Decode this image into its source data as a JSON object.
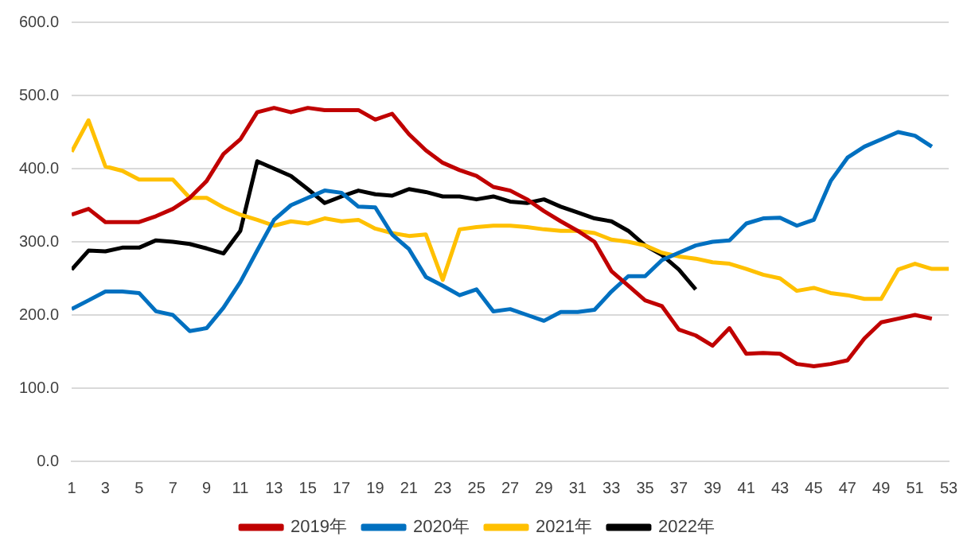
{
  "chart_data": {
    "type": "line",
    "x": [
      1,
      2,
      3,
      4,
      5,
      6,
      7,
      8,
      9,
      10,
      11,
      12,
      13,
      14,
      15,
      16,
      17,
      18,
      19,
      20,
      21,
      22,
      23,
      24,
      25,
      26,
      27,
      28,
      29,
      30,
      31,
      32,
      33,
      34,
      35,
      36,
      37,
      38,
      39,
      40,
      41,
      42,
      43,
      44,
      45,
      46,
      47,
      48,
      49,
      50,
      51,
      52,
      53
    ],
    "xlim": [
      1,
      53
    ],
    "xticks": [
      1,
      3,
      5,
      7,
      9,
      11,
      13,
      15,
      17,
      19,
      21,
      23,
      25,
      27,
      29,
      31,
      33,
      35,
      37,
      39,
      41,
      43,
      45,
      47,
      49,
      51,
      53
    ],
    "series": [
      {
        "name": "2019年",
        "color": "#c00000",
        "values": [
          337,
          345,
          327,
          327,
          327,
          335,
          345,
          360,
          383,
          420,
          440,
          477,
          483,
          477,
          483,
          480,
          480,
          480,
          467,
          475,
          447,
          425,
          408,
          398,
          390,
          375,
          370,
          358,
          342,
          328,
          315,
          300,
          260,
          240,
          220,
          212,
          180,
          172,
          158,
          182,
          147,
          148,
          147,
          133,
          130,
          133,
          138,
          168,
          190,
          195,
          200,
          195,
          null
        ]
      },
      {
        "name": "2020年",
        "color": "#0070c0",
        "values": [
          208,
          220,
          232,
          232,
          230,
          205,
          200,
          178,
          182,
          210,
          245,
          288,
          330,
          350,
          360,
          370,
          367,
          348,
          347,
          310,
          290,
          252,
          240,
          227,
          235,
          205,
          208,
          200,
          192,
          204,
          204,
          207,
          232,
          253,
          253,
          275,
          285,
          295,
          300,
          302,
          325,
          332,
          333,
          322,
          330,
          383,
          415,
          430,
          440,
          450,
          445,
          430,
          null
        ]
      },
      {
        "name": "2021年",
        "color": "#ffc000",
        "values": [
          423,
          466,
          403,
          397,
          385,
          385,
          385,
          360,
          360,
          347,
          337,
          330,
          322,
          328,
          325,
          332,
          328,
          330,
          318,
          312,
          308,
          310,
          248,
          317,
          320,
          322,
          322,
          320,
          317,
          315,
          315,
          312,
          303,
          300,
          295,
          285,
          280,
          277,
          272,
          270,
          263,
          255,
          250,
          233,
          237,
          230,
          227,
          222,
          222,
          262,
          270,
          263,
          263
        ]
      },
      {
        "name": "2022年",
        "color": "#000000",
        "values": [
          262,
          288,
          287,
          292,
          292,
          302,
          300,
          297,
          291,
          284,
          315,
          410,
          400,
          390,
          372,
          353,
          362,
          370,
          365,
          363,
          372,
          368,
          362,
          362,
          358,
          362,
          355,
          353,
          358,
          348,
          340,
          332,
          328,
          315,
          295,
          282,
          262,
          235,
          null,
          null,
          null,
          null,
          null,
          null,
          null,
          null,
          null,
          null,
          null,
          null,
          null,
          null,
          null
        ]
      }
    ],
    "ylim": [
      0,
      600
    ],
    "yticks": [
      {
        "value": 0,
        "label": "0.0"
      },
      {
        "value": 100,
        "label": "100.0"
      },
      {
        "value": 200,
        "label": "200.0"
      },
      {
        "value": 300,
        "label": "300.0"
      },
      {
        "value": 400,
        "label": "400.0"
      },
      {
        "value": 500,
        "label": "500.0"
      },
      {
        "value": 600,
        "label": "600.0"
      }
    ],
    "grid": "y",
    "legend": "bottom",
    "marker": "none",
    "line_style": "solid"
  }
}
